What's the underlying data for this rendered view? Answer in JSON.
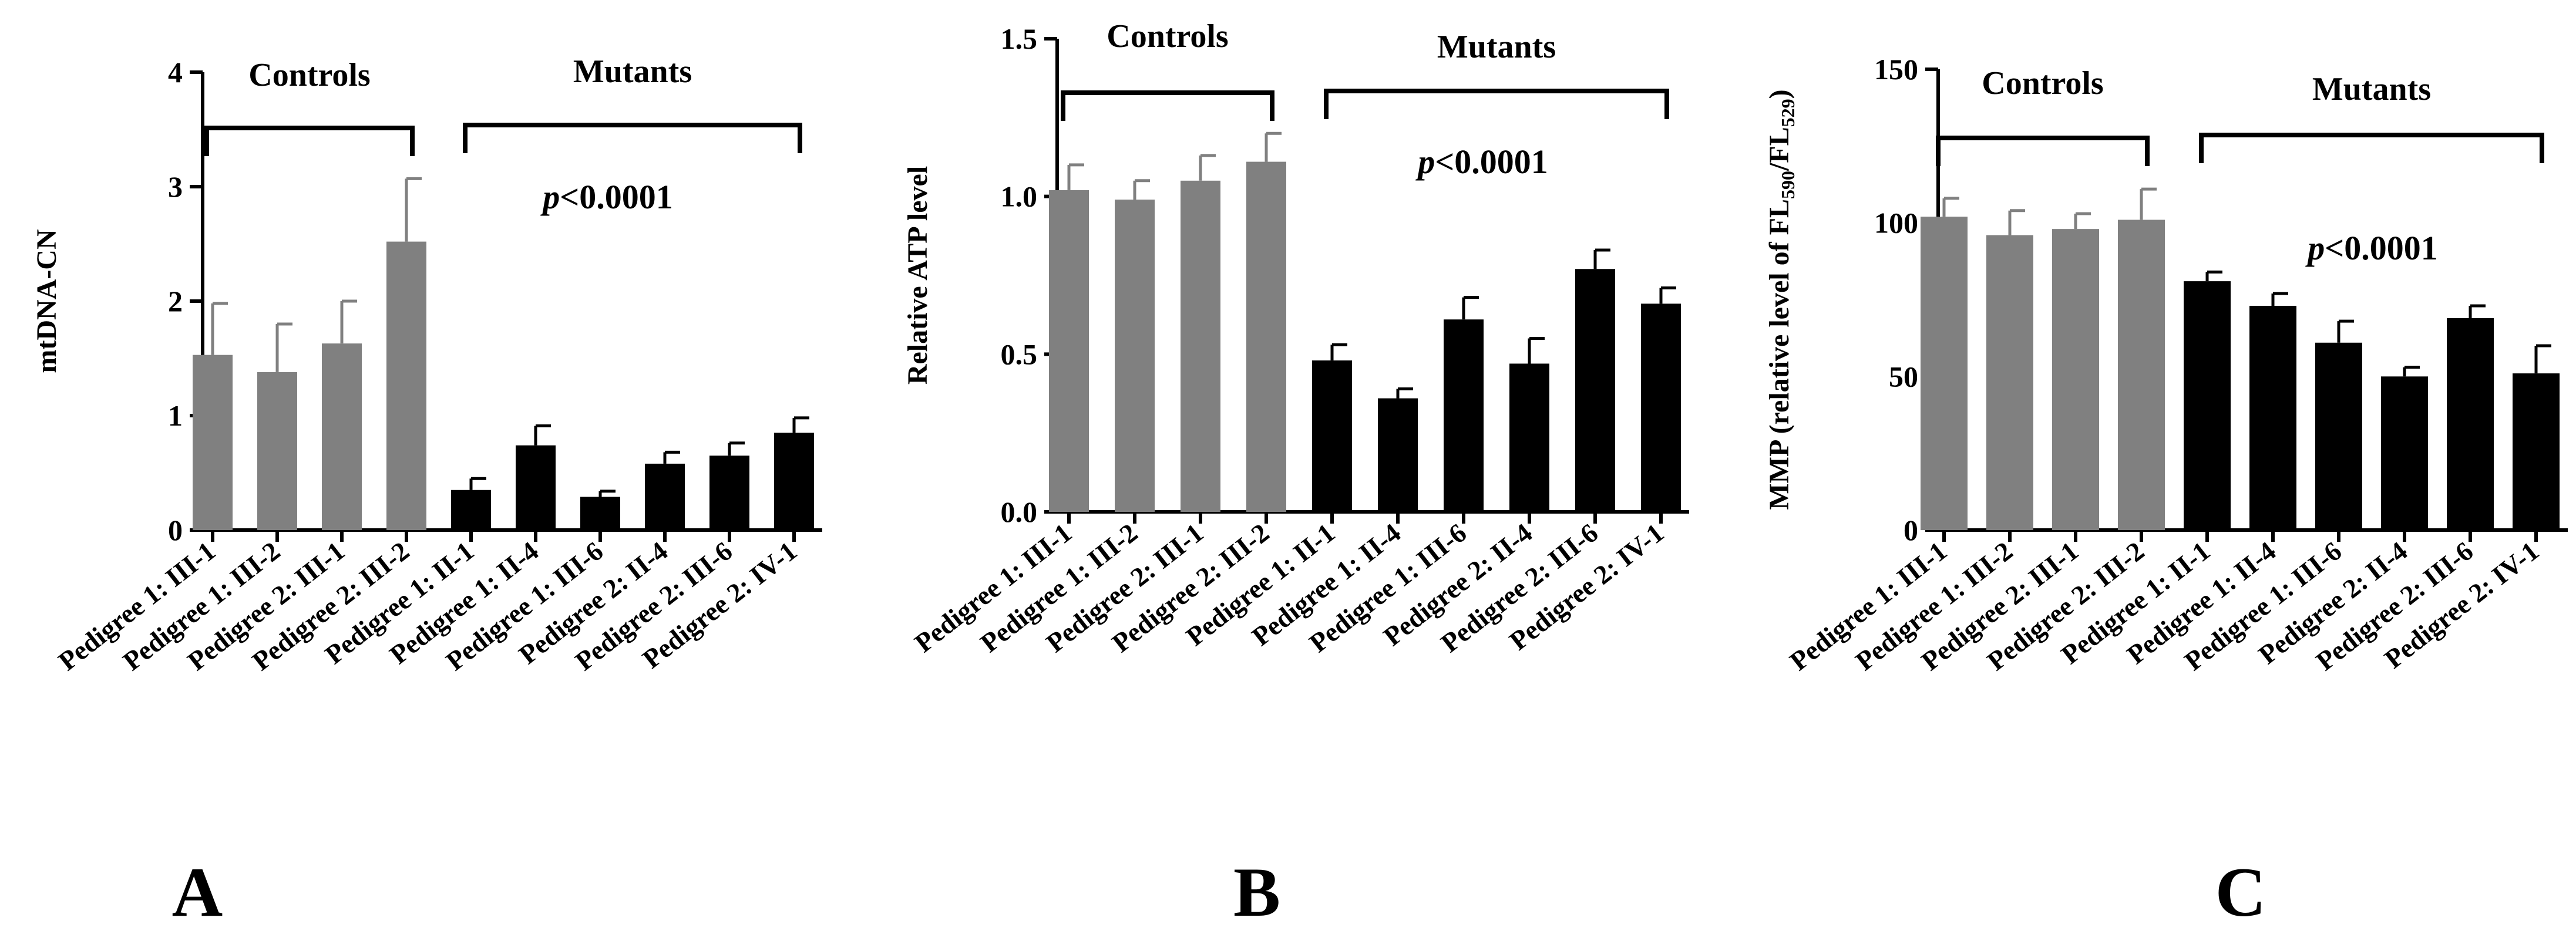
{
  "colors": {
    "control": "#808080",
    "mutant": "#000000",
    "axis": "#000000"
  },
  "chart_data": [
    {
      "type": "bar",
      "panel": "A",
      "ylabel": "mtDNA-CN",
      "ylim": [
        0,
        4
      ],
      "yticks": [
        "0",
        "1",
        "2",
        "3",
        "4"
      ],
      "categories": [
        "Pedigree 1: III-1",
        "Pedigree 1: III-2",
        "Pedigree 2: III-1",
        "Pedigree 2: III-2",
        "Pedigree 1: II-1",
        "Pedigree 1: II-4",
        "Pedigree 1: III-6",
        "Pedigree 2: II-4",
        "Pedigree 2: III-6",
        "Pedigree 2: IV-1"
      ],
      "groups": [
        {
          "name": "Controls",
          "start": 0,
          "end": 3
        },
        {
          "name": "Mutants",
          "start": 4,
          "end": 9
        }
      ],
      "series": [
        {
          "name": "Controls",
          "values": [
            1.53,
            1.38,
            1.63,
            2.52,
            null,
            null,
            null,
            null,
            null,
            null
          ],
          "errors": [
            0.45,
            0.42,
            0.37,
            0.55,
            null,
            null,
            null,
            null,
            null,
            null
          ]
        },
        {
          "name": "Mutants",
          "values": [
            null,
            null,
            null,
            null,
            0.35,
            0.74,
            0.29,
            0.58,
            0.65,
            0.85
          ],
          "errors": [
            null,
            null,
            null,
            null,
            0.1,
            0.17,
            0.05,
            0.1,
            0.11,
            0.13
          ]
        }
      ],
      "annotation": {
        "prefix": "p",
        "text": "<0.0001"
      }
    },
    {
      "type": "bar",
      "panel": "B",
      "ylabel": "Relative ATP level",
      "ylim": [
        0,
        1.5
      ],
      "yticks": [
        "0.0",
        "0.5",
        "1.0",
        "1.5"
      ],
      "categories": [
        "Pedigree 1: III-1",
        "Pedigree 1: III-2",
        "Pedigree 2: III-1",
        "Pedigree 2: III-2",
        "Pedigree 1: II-1",
        "Pedigree 1: II-4",
        "Pedigree 1: III-6",
        "Pedigree 2: II-4",
        "Pedigree 2: III-6",
        "Pedigree 2: IV-1"
      ],
      "groups": [
        {
          "name": "Controls",
          "start": 0,
          "end": 3
        },
        {
          "name": "Mutants",
          "start": 4,
          "end": 9
        }
      ],
      "series": [
        {
          "name": "Controls",
          "values": [
            1.02,
            0.99,
            1.05,
            1.11,
            null,
            null,
            null,
            null,
            null,
            null
          ],
          "errors": [
            0.08,
            0.06,
            0.08,
            0.09,
            null,
            null,
            null,
            null,
            null,
            null
          ]
        },
        {
          "name": "Mutants",
          "values": [
            null,
            null,
            null,
            null,
            0.48,
            0.36,
            0.61,
            0.47,
            0.77,
            0.66
          ],
          "errors": [
            null,
            null,
            null,
            null,
            0.05,
            0.03,
            0.07,
            0.08,
            0.06,
            0.05
          ]
        }
      ],
      "annotation": {
        "prefix": "p",
        "text": "<0.0001"
      }
    },
    {
      "type": "bar",
      "panel": "C",
      "ylabel": "MMP (relative level of FL",
      "ylabel_sub1": "590",
      "ylabel_mid": "/FL",
      "ylabel_sub2": "529",
      "ylabel_end": ")",
      "ylim": [
        0,
        150
      ],
      "yticks": [
        "0",
        "50",
        "100",
        "150"
      ],
      "categories": [
        "Pedigree 1: III-1",
        "Pedigree 1: III-2",
        "Pedigree 2: III-1",
        "Pedigree 2: III-2",
        "Pedigree 1: II-1",
        "Pedigree 1: II-4",
        "Pedigree 1: III-6",
        "Pedigree 2: II-4",
        "Pedigree 2: III-6",
        "Pedigree 2: IV-1"
      ],
      "groups": [
        {
          "name": "Controls",
          "start": 0,
          "end": 3
        },
        {
          "name": "Mutants",
          "start": 4,
          "end": 9
        }
      ],
      "series": [
        {
          "name": "Controls",
          "values": [
            102,
            96,
            98,
            101,
            null,
            null,
            null,
            null,
            null,
            null
          ],
          "errors": [
            6,
            8,
            5,
            10,
            null,
            null,
            null,
            null,
            null,
            null
          ]
        },
        {
          "name": "Mutants",
          "values": [
            null,
            null,
            null,
            null,
            81,
            73,
            61,
            50,
            69,
            51
          ],
          "errors": [
            null,
            null,
            null,
            null,
            3,
            4,
            7,
            3,
            4,
            9
          ]
        }
      ],
      "annotation": {
        "prefix": "p",
        "text": "<0.0001"
      }
    }
  ]
}
